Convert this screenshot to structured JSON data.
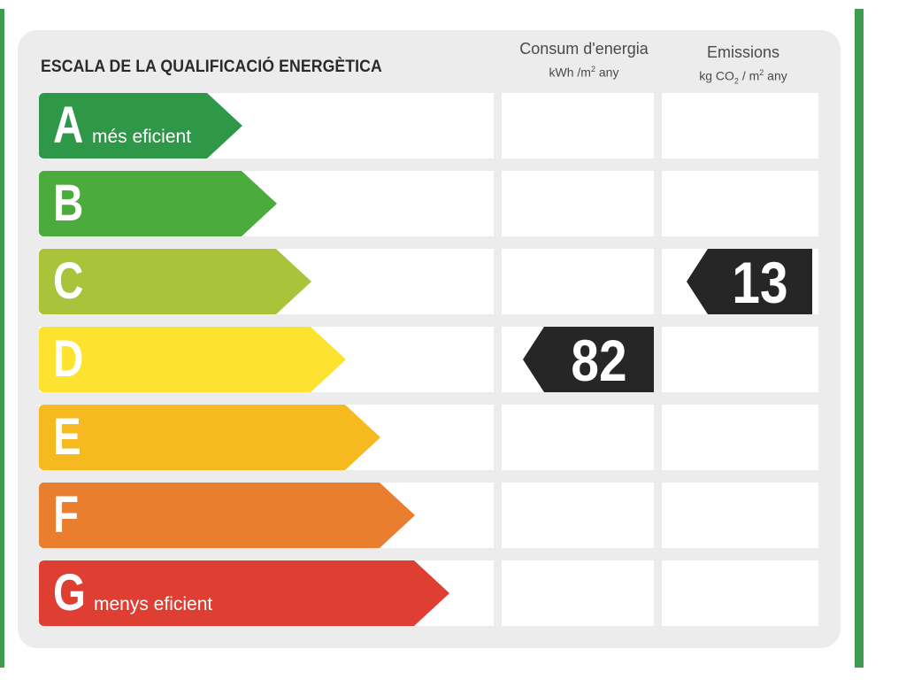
{
  "title": "ESCALA DE LA QUALIFICACIÓ ENERGÈTICA",
  "columns": {
    "consum": {
      "heading": "Consum d'energia",
      "unit_main": "kWh /m",
      "unit_sup": "2",
      "unit_tail": " any"
    },
    "emissions": {
      "heading": "Emissions",
      "unit_a": "kg CO",
      "unit_sub": "2",
      "unit_b": " / m",
      "unit_sup": "2",
      "unit_tail": " any"
    }
  },
  "scale": [
    {
      "letter": "A",
      "label": "més eficient",
      "color": "#2e9848"
    },
    {
      "letter": "B",
      "label": "",
      "color": "#4bab3c"
    },
    {
      "letter": "C",
      "label": "",
      "color": "#a9c43b"
    },
    {
      "letter": "D",
      "label": "",
      "color": "#fde32f"
    },
    {
      "letter": "E",
      "label": "",
      "color": "#f6b91f"
    },
    {
      "letter": "F",
      "label": "",
      "color": "#e97f2e"
    },
    {
      "letter": "G",
      "label": "menys eficient",
      "color": "#df3e33"
    }
  ],
  "ratings": {
    "consum": {
      "class": "D",
      "value": "82"
    },
    "emissions": {
      "class": "C",
      "value": "13"
    }
  },
  "colors": {
    "marker": "#262626",
    "frame": "#3e9b4f",
    "card": "#ececec"
  }
}
